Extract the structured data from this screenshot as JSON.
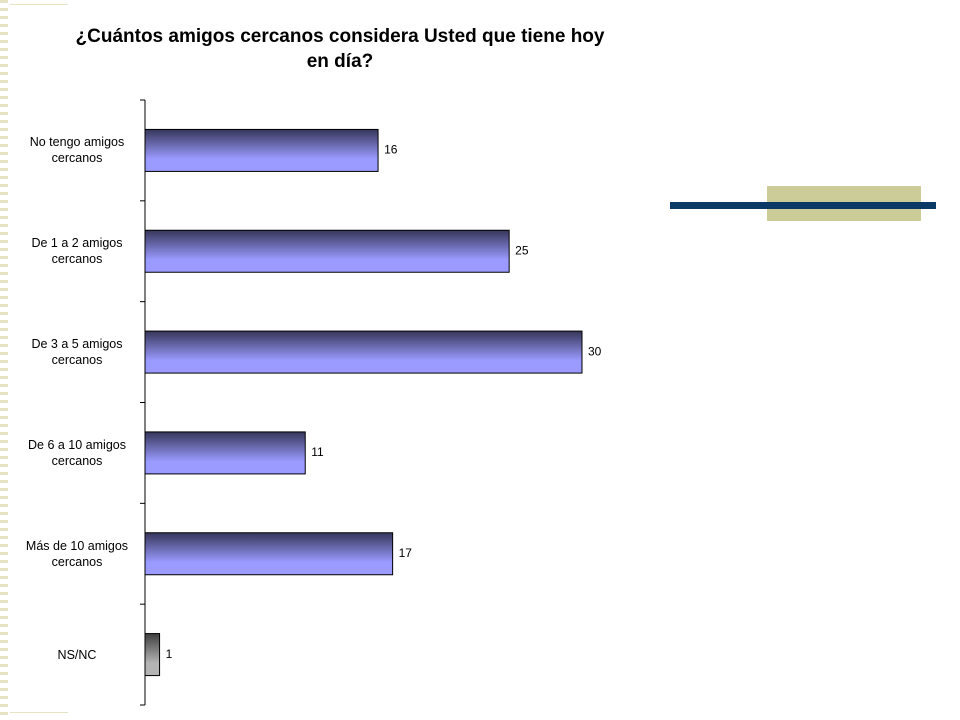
{
  "chart_data": {
    "type": "bar",
    "orientation": "horizontal",
    "title": "¿Cuántos amigos cercanos considera Usted que tiene hoy en día?",
    "categories": [
      "No tengo amigos cercanos",
      "De 1 a 2 amigos cercanos",
      "De 3 a 5 amigos cercanos",
      "De 6 a 10 amigos cercanos",
      "Más de 10 amigos cercanos",
      "NS/NC"
    ],
    "values": [
      16,
      25,
      30,
      11,
      17,
      1
    ],
    "colors": [
      "#9a9aff",
      "#9a9aff",
      "#9a9aff",
      "#9a9aff",
      "#9a9aff",
      "#b4b4b4"
    ]
  }
}
